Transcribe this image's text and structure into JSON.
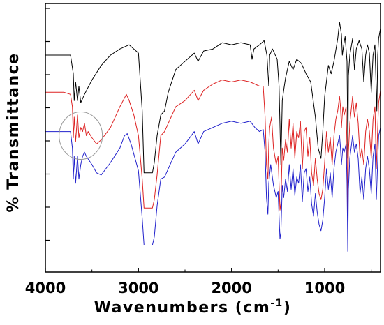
{
  "chart_data": {
    "type": "line",
    "title": "",
    "xlabel": "Wavenumbers (cm",
    "xlabel_sup": "-1",
    "xlabel_close": ")",
    "ylabel": "% Transmittance",
    "xlim": [
      4000,
      400
    ],
    "x_reversed": true,
    "xticks": [
      4000,
      3000,
      2000,
      1000
    ],
    "xtick_labels": [
      "4000",
      "3000",
      "2000",
      "1000"
    ],
    "yticks_labeled": false,
    "grid": false,
    "legend": "none",
    "annotation": {
      "type": "circle",
      "x": 3620,
      "y": 6.6,
      "description": "highlighted O-H stretch region of middle spectrum"
    },
    "series": [
      {
        "color": "#000000",
        "points": [
          [
            4000,
            10.5
          ],
          [
            3800,
            10.5
          ],
          [
            3730,
            10.5
          ],
          [
            3700,
            9.6
          ],
          [
            3690,
            8.3
          ],
          [
            3675,
            9.2
          ],
          [
            3655,
            8.3
          ],
          [
            3640,
            9.0
          ],
          [
            3620,
            8.2
          ],
          [
            3580,
            8.6
          ],
          [
            3500,
            9.3
          ],
          [
            3400,
            10.0
          ],
          [
            3300,
            10.5
          ],
          [
            3200,
            10.8
          ],
          [
            3100,
            11.0
          ],
          [
            3000,
            10.6
          ],
          [
            2960,
            7.8
          ],
          [
            2940,
            4.8
          ],
          [
            2920,
            4.8
          ],
          [
            2880,
            4.8
          ],
          [
            2850,
            4.8
          ],
          [
            2830,
            5.3
          ],
          [
            2800,
            6.6
          ],
          [
            2760,
            7.6
          ],
          [
            2720,
            7.8
          ],
          [
            2680,
            8.7
          ],
          [
            2600,
            9.8
          ],
          [
            2500,
            10.2
          ],
          [
            2400,
            10.6
          ],
          [
            2360,
            10.2
          ],
          [
            2300,
            10.7
          ],
          [
            2200,
            10.8
          ],
          [
            2100,
            11.1
          ],
          [
            2000,
            11.0
          ],
          [
            1900,
            11.1
          ],
          [
            1800,
            11.0
          ],
          [
            1780,
            10.3
          ],
          [
            1760,
            10.8
          ],
          [
            1700,
            11.0
          ],
          [
            1650,
            11.2
          ],
          [
            1620,
            10.5
          ],
          [
            1600,
            9.0
          ],
          [
            1590,
            10.5
          ],
          [
            1560,
            10.8
          ],
          [
            1510,
            10.3
          ],
          [
            1490,
            9.0
          ],
          [
            1470,
            5.2
          ],
          [
            1455,
            8.3
          ],
          [
            1440,
            8.8
          ],
          [
            1420,
            9.4
          ],
          [
            1380,
            10.2
          ],
          [
            1340,
            9.8
          ],
          [
            1300,
            10.3
          ],
          [
            1250,
            10.1
          ],
          [
            1200,
            9.6
          ],
          [
            1150,
            9.2
          ],
          [
            1100,
            7.5
          ],
          [
            1070,
            6.0
          ],
          [
            1040,
            5.5
          ],
          [
            1020,
            6.8
          ],
          [
            1000,
            8.5
          ],
          [
            960,
            10.0
          ],
          [
            930,
            9.6
          ],
          [
            900,
            10.2
          ],
          [
            860,
            11.3
          ],
          [
            840,
            12.1
          ],
          [
            820,
            11.5
          ],
          [
            810,
            10.5
          ],
          [
            795,
            11.0
          ],
          [
            780,
            11.4
          ],
          [
            760,
            10.2
          ],
          [
            750,
            5.5
          ],
          [
            745,
            9.5
          ],
          [
            730,
            10.5
          ],
          [
            700,
            11.3
          ],
          [
            680,
            9.8
          ],
          [
            660,
            10.8
          ],
          [
            630,
            11.2
          ],
          [
            600,
            10.8
          ],
          [
            580,
            9.2
          ],
          [
            560,
            10.5
          ],
          [
            540,
            11.0
          ],
          [
            520,
            10.6
          ],
          [
            500,
            8.7
          ],
          [
            480,
            10.5
          ],
          [
            460,
            11.0
          ],
          [
            440,
            7.8
          ],
          [
            430,
            10.5
          ],
          [
            420,
            11.3
          ],
          [
            400,
            11.8
          ]
        ]
      },
      {
        "color": "#dd2222",
        "points": [
          [
            4000,
            8.7
          ],
          [
            3800,
            8.7
          ],
          [
            3730,
            8.6
          ],
          [
            3710,
            8.0
          ],
          [
            3700,
            6.5
          ],
          [
            3690,
            7.5
          ],
          [
            3675,
            6.3
          ],
          [
            3655,
            7.6
          ],
          [
            3640,
            6.5
          ],
          [
            3620,
            7.0
          ],
          [
            3600,
            6.8
          ],
          [
            3580,
            7.2
          ],
          [
            3560,
            6.6
          ],
          [
            3540,
            6.8
          ],
          [
            3500,
            6.5
          ],
          [
            3450,
            6.2
          ],
          [
            3400,
            6.4
          ],
          [
            3300,
            7.0
          ],
          [
            3200,
            8.0
          ],
          [
            3130,
            8.6
          ],
          [
            3100,
            8.3
          ],
          [
            3050,
            7.6
          ],
          [
            3000,
            6.6
          ],
          [
            2960,
            4.5
          ],
          [
            2940,
            3.1
          ],
          [
            2920,
            3.1
          ],
          [
            2880,
            3.1
          ],
          [
            2850,
            3.1
          ],
          [
            2830,
            3.5
          ],
          [
            2800,
            4.7
          ],
          [
            2760,
            6.6
          ],
          [
            2720,
            6.8
          ],
          [
            2680,
            7.2
          ],
          [
            2600,
            8.0
          ],
          [
            2500,
            8.3
          ],
          [
            2400,
            8.8
          ],
          [
            2360,
            8.3
          ],
          [
            2300,
            8.8
          ],
          [
            2200,
            9.1
          ],
          [
            2100,
            9.3
          ],
          [
            2000,
            9.2
          ],
          [
            1900,
            9.3
          ],
          [
            1800,
            9.2
          ],
          [
            1700,
            9.0
          ],
          [
            1660,
            9.0
          ],
          [
            1640,
            7.5
          ],
          [
            1625,
            5.2
          ],
          [
            1610,
            4.5
          ],
          [
            1600,
            6.2
          ],
          [
            1590,
            7.0
          ],
          [
            1570,
            7.5
          ],
          [
            1550,
            6.0
          ],
          [
            1520,
            5.2
          ],
          [
            1500,
            5.6
          ],
          [
            1480,
            3.0
          ],
          [
            1470,
            3.3
          ],
          [
            1455,
            6.0
          ],
          [
            1440,
            5.4
          ],
          [
            1420,
            6.4
          ],
          [
            1400,
            5.8
          ],
          [
            1380,
            7.4
          ],
          [
            1360,
            6.0
          ],
          [
            1340,
            7.2
          ],
          [
            1320,
            5.5
          ],
          [
            1300,
            6.8
          ],
          [
            1280,
            6.5
          ],
          [
            1260,
            7.3
          ],
          [
            1240,
            5.0
          ],
          [
            1220,
            6.8
          ],
          [
            1200,
            7.0
          ],
          [
            1180,
            5.6
          ],
          [
            1160,
            6.5
          ],
          [
            1140,
            4.8
          ],
          [
            1120,
            4.2
          ],
          [
            1100,
            5.5
          ],
          [
            1080,
            4.5
          ],
          [
            1060,
            3.8
          ],
          [
            1040,
            3.5
          ],
          [
            1020,
            4.0
          ],
          [
            1000,
            5.3
          ],
          [
            980,
            6.8
          ],
          [
            960,
            5.8
          ],
          [
            940,
            6.5
          ],
          [
            920,
            5.2
          ],
          [
            900,
            6.6
          ],
          [
            880,
            7.4
          ],
          [
            860,
            7.8
          ],
          [
            840,
            8.5
          ],
          [
            830,
            8.0
          ],
          [
            820,
            7.0
          ],
          [
            805,
            8.0
          ],
          [
            790,
            7.6
          ],
          [
            770,
            8.0
          ],
          [
            760,
            6.0
          ],
          [
            752,
            2.5
          ],
          [
            745,
            5.8
          ],
          [
            730,
            7.2
          ],
          [
            700,
            8.5
          ],
          [
            680,
            7.5
          ],
          [
            660,
            8.2
          ],
          [
            640,
            7.2
          ],
          [
            620,
            5.5
          ],
          [
            600,
            6.0
          ],
          [
            580,
            5.2
          ],
          [
            560,
            6.8
          ],
          [
            540,
            7.4
          ],
          [
            520,
            6.8
          ],
          [
            500,
            5.5
          ],
          [
            480,
            7.4
          ],
          [
            460,
            8.0
          ],
          [
            445,
            5.0
          ],
          [
            430,
            7.0
          ],
          [
            420,
            8.2
          ],
          [
            400,
            8.8
          ]
        ]
      },
      {
        "color": "#2222cc",
        "points": [
          [
            4000,
            6.8
          ],
          [
            3800,
            6.8
          ],
          [
            3730,
            6.8
          ],
          [
            3710,
            6.0
          ],
          [
            3700,
            4.5
          ],
          [
            3690,
            5.6
          ],
          [
            3675,
            4.3
          ],
          [
            3655,
            5.6
          ],
          [
            3640,
            4.5
          ],
          [
            3620,
            5.2
          ],
          [
            3600,
            5.6
          ],
          [
            3580,
            5.8
          ],
          [
            3560,
            5.6
          ],
          [
            3500,
            5.2
          ],
          [
            3450,
            4.8
          ],
          [
            3400,
            4.7
          ],
          [
            3300,
            5.3
          ],
          [
            3200,
            6.0
          ],
          [
            3150,
            6.6
          ],
          [
            3120,
            6.7
          ],
          [
            3080,
            6.2
          ],
          [
            3000,
            4.9
          ],
          [
            2960,
            2.6
          ],
          [
            2940,
            1.3
          ],
          [
            2920,
            1.3
          ],
          [
            2880,
            1.3
          ],
          [
            2850,
            1.3
          ],
          [
            2830,
            1.7
          ],
          [
            2800,
            3.2
          ],
          [
            2760,
            4.5
          ],
          [
            2720,
            4.6
          ],
          [
            2680,
            5.0
          ],
          [
            2600,
            5.8
          ],
          [
            2500,
            6.2
          ],
          [
            2400,
            6.8
          ],
          [
            2360,
            6.2
          ],
          [
            2300,
            6.8
          ],
          [
            2200,
            7.0
          ],
          [
            2100,
            7.2
          ],
          [
            2000,
            7.3
          ],
          [
            1900,
            7.2
          ],
          [
            1800,
            7.3
          ],
          [
            1750,
            7.0
          ],
          [
            1700,
            6.8
          ],
          [
            1660,
            6.9
          ],
          [
            1640,
            5.8
          ],
          [
            1625,
            3.6
          ],
          [
            1610,
            2.8
          ],
          [
            1600,
            4.3
          ],
          [
            1580,
            5.2
          ],
          [
            1550,
            4.2
          ],
          [
            1520,
            3.6
          ],
          [
            1500,
            3.9
          ],
          [
            1480,
            1.6
          ],
          [
            1470,
            1.9
          ],
          [
            1455,
            4.2
          ],
          [
            1440,
            3.6
          ],
          [
            1420,
            4.5
          ],
          [
            1400,
            3.9
          ],
          [
            1380,
            5.2
          ],
          [
            1360,
            4.0
          ],
          [
            1340,
            5.0
          ],
          [
            1320,
            3.7
          ],
          [
            1300,
            4.6
          ],
          [
            1280,
            4.3
          ],
          [
            1260,
            5.2
          ],
          [
            1240,
            3.4
          ],
          [
            1220,
            4.8
          ],
          [
            1200,
            5.0
          ],
          [
            1180,
            3.9
          ],
          [
            1160,
            4.6
          ],
          [
            1140,
            3.3
          ],
          [
            1120,
            2.7
          ],
          [
            1100,
            3.8
          ],
          [
            1080,
            2.9
          ],
          [
            1060,
            2.3
          ],
          [
            1040,
            2.0
          ],
          [
            1020,
            2.5
          ],
          [
            1000,
            3.6
          ],
          [
            980,
            5.0
          ],
          [
            960,
            4.0
          ],
          [
            940,
            4.8
          ],
          [
            920,
            3.6
          ],
          [
            900,
            5.0
          ],
          [
            880,
            5.8
          ],
          [
            860,
            6.2
          ],
          [
            840,
            6.6
          ],
          [
            830,
            6.0
          ],
          [
            820,
            5.2
          ],
          [
            805,
            6.0
          ],
          [
            790,
            5.8
          ],
          [
            770,
            6.2
          ],
          [
            760,
            4.3
          ],
          [
            752,
            1.0
          ],
          [
            745,
            4.0
          ],
          [
            730,
            5.5
          ],
          [
            700,
            6.6
          ],
          [
            680,
            5.8
          ],
          [
            660,
            6.2
          ],
          [
            640,
            5.5
          ],
          [
            620,
            3.8
          ],
          [
            600,
            4.6
          ],
          [
            580,
            3.5
          ],
          [
            560,
            5.0
          ],
          [
            540,
            5.6
          ],
          [
            520,
            5.0
          ],
          [
            500,
            3.8
          ],
          [
            480,
            5.6
          ],
          [
            460,
            6.2
          ],
          [
            445,
            3.5
          ],
          [
            430,
            5.4
          ],
          [
            420,
            6.6
          ],
          [
            400,
            7.0
          ]
        ]
      }
    ]
  }
}
